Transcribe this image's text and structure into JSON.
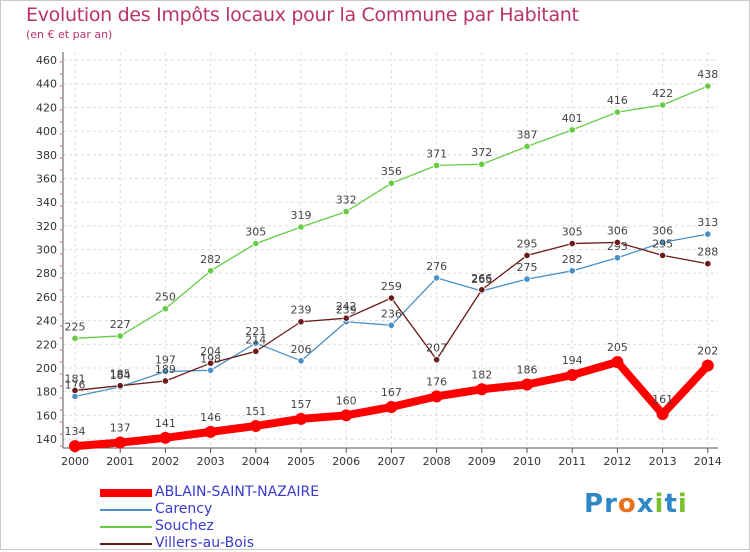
{
  "header": {
    "title": "Evolution des Impôts locaux pour la Commune par Habitant",
    "subtitle": "(en € et par an)"
  },
  "logo": {
    "text": "Proxiti",
    "letters": [
      {
        "ch": "P",
        "color": "#2e88c8"
      },
      {
        "ch": "r",
        "color": "#2e88c8"
      },
      {
        "ch": "o",
        "color": "#e8721c"
      },
      {
        "ch": "x",
        "color": "#2e88c8"
      },
      {
        "ch": "i",
        "color": "#7cbf2c"
      },
      {
        "ch": "t",
        "color": "#2e88c8"
      },
      {
        "ch": "i",
        "color": "#7cbf2c"
      }
    ]
  },
  "chart_data": {
    "type": "line",
    "title": "Evolution des Impôts locaux pour la Commune par Habitant",
    "subtitle": "(en € et par an)",
    "xlabel": "",
    "ylabel": "",
    "x": [
      "2000",
      "2001",
      "2002",
      "2003",
      "2004",
      "2005",
      "2006",
      "2007",
      "2008",
      "2009",
      "2010",
      "2011",
      "2012",
      "2013",
      "2014"
    ],
    "ylim": [
      130,
      460
    ],
    "yticks": [
      140,
      160,
      180,
      200,
      220,
      240,
      260,
      280,
      300,
      320,
      340,
      360,
      380,
      400,
      420,
      440,
      460
    ],
    "grid": true,
    "legend_position": "bottom-left",
    "series": [
      {
        "name": "ABLAIN-SAINT-NAZAIRE",
        "color": "#ff0000",
        "values": [
          134,
          137,
          141,
          146,
          151,
          157,
          160,
          167,
          176,
          182,
          186,
          194,
          205,
          161,
          202
        ]
      },
      {
        "name": "Carency",
        "color": "#4a90c8",
        "values": [
          176,
          184,
          197,
          198,
          221,
          206,
          239,
          236,
          276,
          265,
          275,
          282,
          293,
          306,
          313
        ]
      },
      {
        "name": "Souchez",
        "color": "#66cc44",
        "values": [
          225,
          227,
          250,
          282,
          305,
          319,
          332,
          356,
          371,
          372,
          387,
          401,
          416,
          422,
          438
        ]
      },
      {
        "name": "Villers-au-Bois",
        "color": "#6b1a1a",
        "values": [
          181,
          185,
          189,
          204,
          214,
          239,
          242,
          259,
          207,
          266,
          295,
          305,
          306,
          295,
          288
        ]
      }
    ]
  }
}
